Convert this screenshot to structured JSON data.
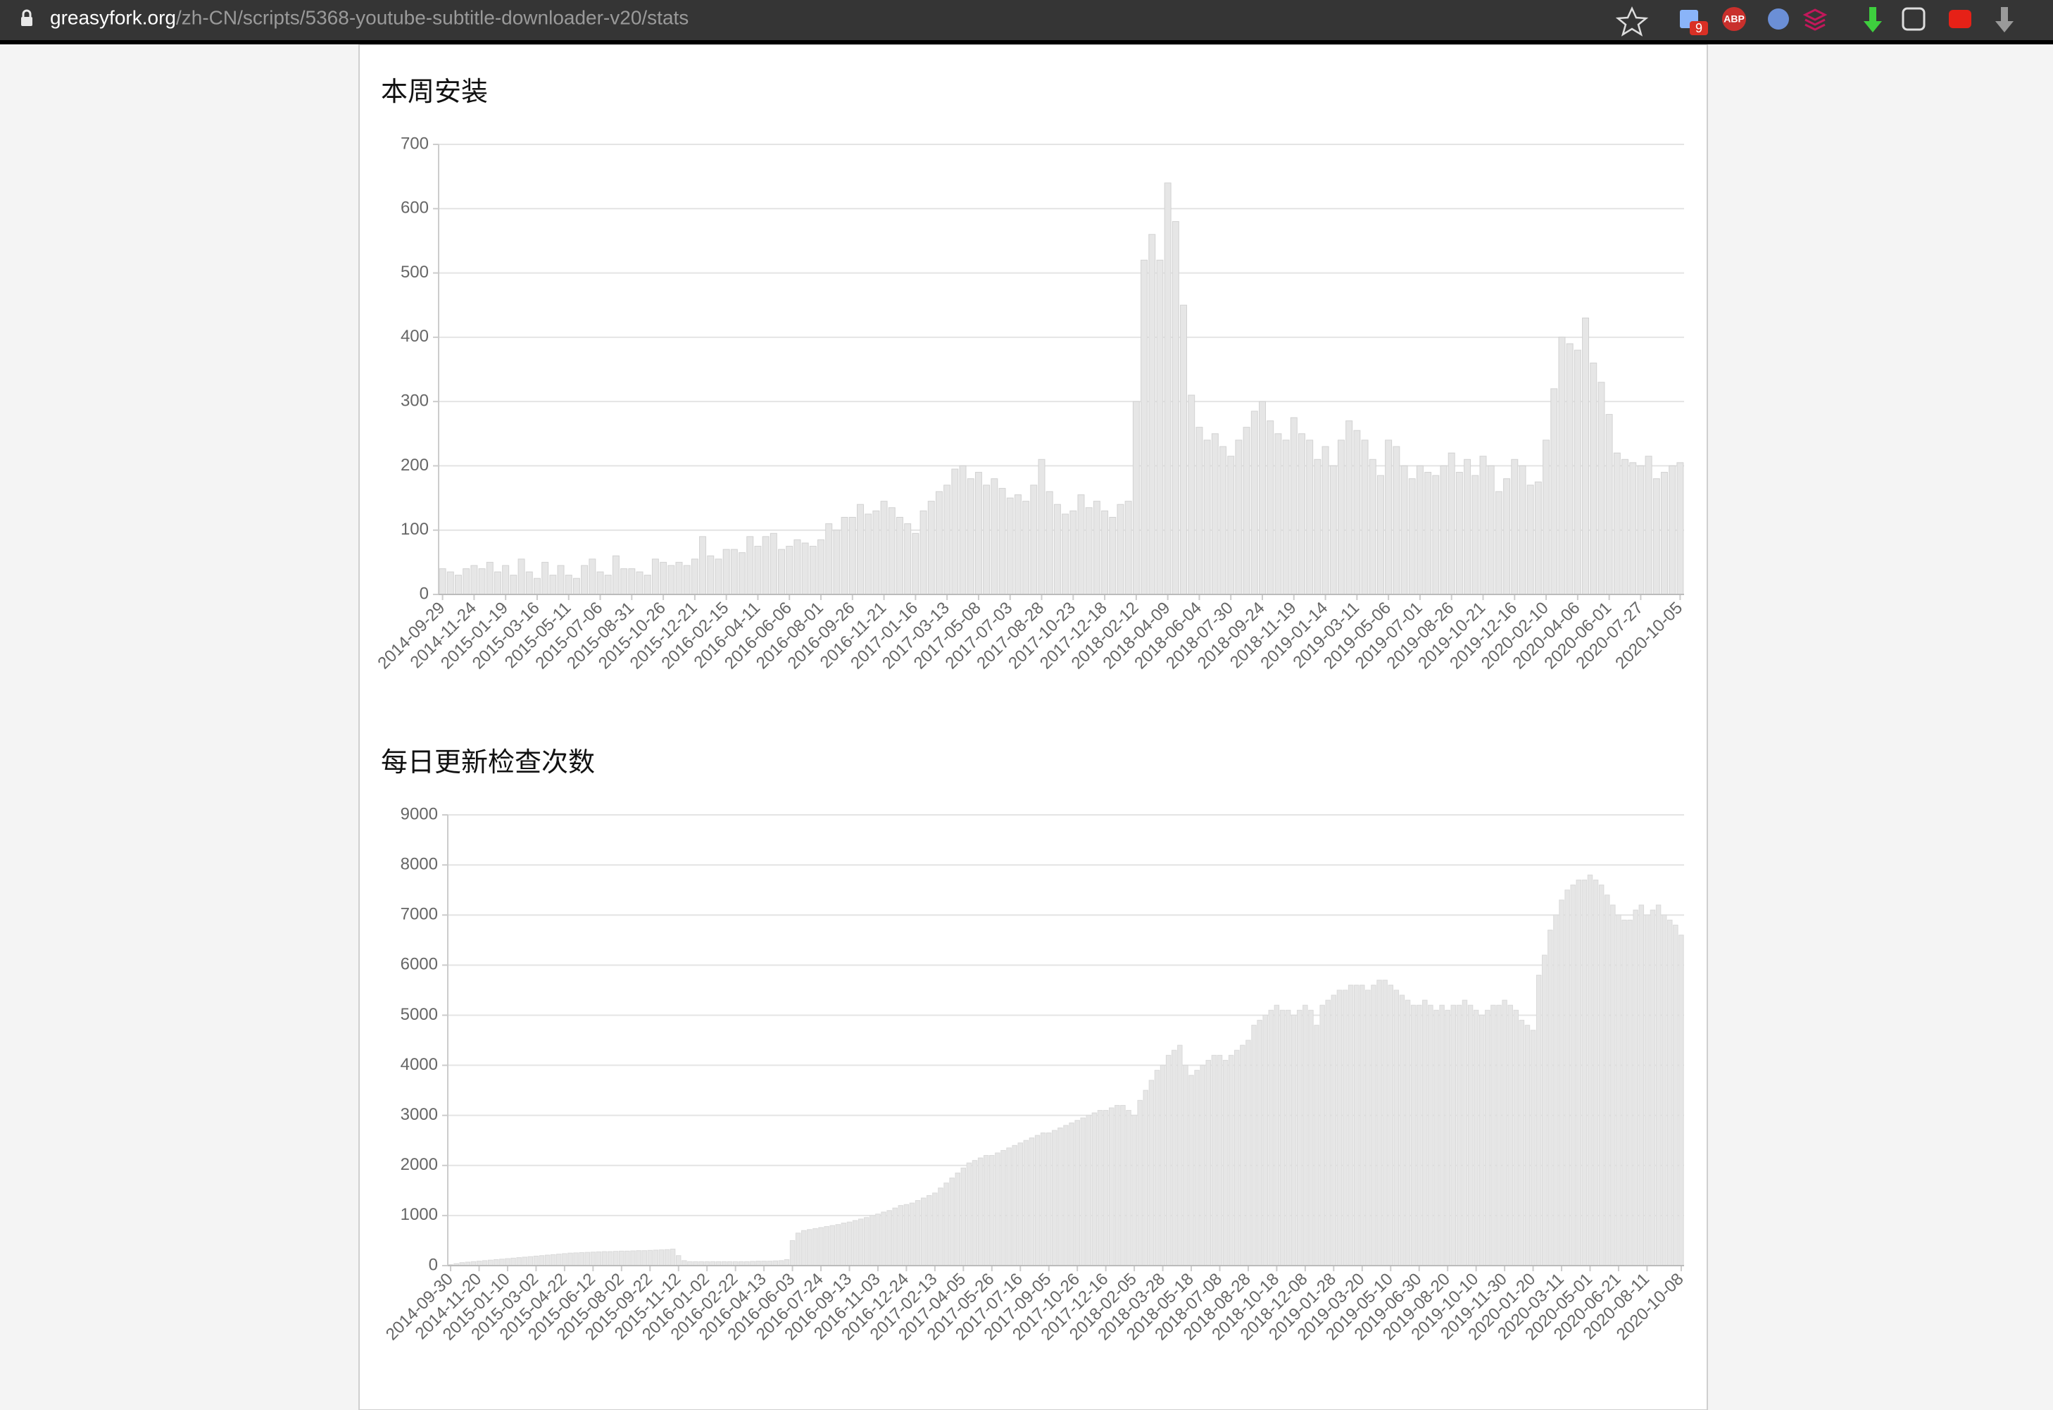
{
  "browser": {
    "url_host": "greasyfork.org",
    "url_path": "/zh-CN/scripts/5368-youtube-subtitle-downloader-v20/stats",
    "badge": "9",
    "abp": "ABP"
  },
  "chart_data": [
    {
      "type": "bar",
      "title": "本周安装",
      "color": "#e6e6e6",
      "border": "#d2d2d2",
      "grid": true,
      "ylim": [
        0,
        700
      ],
      "yticks": [
        0,
        100,
        200,
        300,
        400,
        500,
        600,
        700
      ],
      "categories": [
        "2014-09-29",
        null,
        null,
        null,
        "2014-11-24",
        null,
        null,
        null,
        "2015-01-19",
        null,
        null,
        null,
        "2015-03-16",
        null,
        null,
        null,
        "2015-05-11",
        null,
        null,
        null,
        "2015-07-06",
        null,
        null,
        null,
        "2015-08-31",
        null,
        null,
        null,
        "2015-10-26",
        null,
        null,
        null,
        "2015-12-21",
        null,
        null,
        null,
        "2016-02-15",
        null,
        null,
        null,
        "2016-04-11",
        null,
        null,
        null,
        "2016-06-06",
        null,
        null,
        null,
        "2016-08-01",
        null,
        null,
        null,
        "2016-09-26",
        null,
        null,
        null,
        "2016-11-21",
        null,
        null,
        null,
        "2017-01-16",
        null,
        null,
        null,
        "2017-03-13",
        null,
        null,
        null,
        "2017-05-08",
        null,
        null,
        null,
        "2017-07-03",
        null,
        null,
        null,
        "2017-08-28",
        null,
        null,
        null,
        "2017-10-23",
        null,
        null,
        null,
        "2017-12-18",
        null,
        null,
        null,
        "2018-02-12",
        null,
        null,
        null,
        "2018-04-09",
        null,
        null,
        null,
        "2018-06-04",
        null,
        null,
        null,
        "2018-07-30",
        null,
        null,
        null,
        "2018-09-24",
        null,
        null,
        null,
        "2018-11-19",
        null,
        null,
        null,
        "2019-01-14",
        null,
        null,
        null,
        "2019-03-11",
        null,
        null,
        null,
        "2019-05-06",
        null,
        null,
        null,
        "2019-07-01",
        null,
        null,
        null,
        "2019-08-26",
        null,
        null,
        null,
        "2019-10-21",
        null,
        null,
        null,
        "2019-12-16",
        null,
        null,
        null,
        "2020-02-10",
        null,
        null,
        null,
        "2020-04-06",
        null,
        null,
        null,
        "2020-06-01",
        null,
        null,
        null,
        "2020-07-27",
        null,
        null,
        null,
        null,
        "2020-10-05"
      ],
      "values": [
        40,
        35,
        30,
        40,
        45,
        40,
        50,
        35,
        45,
        30,
        55,
        35,
        25,
        50,
        30,
        45,
        30,
        25,
        45,
        55,
        35,
        30,
        60,
        40,
        40,
        35,
        30,
        55,
        50,
        45,
        50,
        45,
        55,
        90,
        60,
        55,
        70,
        70,
        65,
        90,
        75,
        90,
        95,
        70,
        75,
        85,
        80,
        75,
        85,
        110,
        100,
        120,
        120,
        140,
        125,
        130,
        145,
        135,
        120,
        110,
        95,
        130,
        145,
        160,
        170,
        195,
        200,
        180,
        190,
        170,
        180,
        165,
        150,
        155,
        145,
        170,
        210,
        160,
        140,
        125,
        130,
        155,
        135,
        145,
        130,
        120,
        140,
        145,
        300,
        520,
        560,
        520,
        640,
        580,
        450,
        310,
        260,
        240,
        250,
        230,
        215,
        240,
        260,
        285,
        300,
        270,
        250,
        240,
        275,
        250,
        240,
        210,
        230,
        200,
        240,
        270,
        255,
        240,
        210,
        185,
        240,
        230,
        200,
        180,
        200,
        190,
        185,
        200,
        220,
        190,
        210,
        185,
        215,
        200,
        160,
        180,
        210,
        200,
        170,
        175,
        240,
        320,
        400,
        390,
        380,
        430,
        360,
        330,
        280,
        220,
        210,
        205,
        200,
        215,
        180,
        190,
        200,
        205
      ]
    },
    {
      "type": "bar",
      "title": "每日更新检查次数",
      "color": "#e6e6e6",
      "border": "#dadada",
      "grid": true,
      "ylim": [
        0,
        9000
      ],
      "yticks": [
        0,
        1000,
        2000,
        3000,
        4000,
        5000,
        6000,
        7000,
        8000,
        9000
      ],
      "categories": [
        "2014-09-30",
        null,
        null,
        null,
        null,
        "2014-11-20",
        null,
        null,
        null,
        null,
        "2015-01-10",
        null,
        null,
        null,
        null,
        "2015-03-02",
        null,
        null,
        null,
        null,
        "2015-04-22",
        null,
        null,
        null,
        null,
        "2015-06-12",
        null,
        null,
        null,
        null,
        "2015-08-02",
        null,
        null,
        null,
        null,
        "2015-09-22",
        null,
        null,
        null,
        null,
        "2015-11-12",
        null,
        null,
        null,
        null,
        "2016-01-02",
        null,
        null,
        null,
        null,
        "2016-02-22",
        null,
        null,
        null,
        null,
        "2016-04-13",
        null,
        null,
        null,
        null,
        "2016-06-03",
        null,
        null,
        null,
        null,
        "2016-07-24",
        null,
        null,
        null,
        null,
        "2016-09-13",
        null,
        null,
        null,
        null,
        "2016-11-03",
        null,
        null,
        null,
        null,
        "2016-12-24",
        null,
        null,
        null,
        null,
        "2017-02-13",
        null,
        null,
        null,
        null,
        "2017-04-05",
        null,
        null,
        null,
        null,
        "2017-05-26",
        null,
        null,
        null,
        null,
        "2017-07-16",
        null,
        null,
        null,
        null,
        "2017-09-05",
        null,
        null,
        null,
        null,
        "2017-10-26",
        null,
        null,
        null,
        null,
        "2017-12-16",
        null,
        null,
        null,
        null,
        "2018-02-05",
        null,
        null,
        null,
        null,
        "2018-03-28",
        null,
        null,
        null,
        null,
        "2018-05-18",
        null,
        null,
        null,
        null,
        "2018-07-08",
        null,
        null,
        null,
        null,
        "2018-08-28",
        null,
        null,
        null,
        null,
        "2018-10-18",
        null,
        null,
        null,
        null,
        "2018-12-08",
        null,
        null,
        null,
        null,
        "2019-01-28",
        null,
        null,
        null,
        null,
        "2019-03-20",
        null,
        null,
        null,
        null,
        "2019-05-10",
        null,
        null,
        null,
        null,
        "2019-06-30",
        null,
        null,
        null,
        null,
        "2019-08-20",
        null,
        null,
        null,
        null,
        "2019-10-10",
        null,
        null,
        null,
        null,
        "2019-11-30",
        null,
        null,
        null,
        null,
        "2020-01-20",
        null,
        null,
        null,
        null,
        "2020-03-11",
        null,
        null,
        null,
        null,
        "2020-05-01",
        null,
        null,
        null,
        null,
        "2020-06-21",
        null,
        null,
        null,
        null,
        "2020-08-11",
        null,
        null,
        null,
        null,
        null,
        "2020-10-08"
      ],
      "values": [
        20,
        40,
        60,
        70,
        80,
        90,
        100,
        110,
        120,
        130,
        140,
        150,
        160,
        170,
        180,
        190,
        200,
        210,
        220,
        230,
        240,
        250,
        255,
        260,
        265,
        270,
        275,
        280,
        280,
        285,
        290,
        290,
        295,
        300,
        300,
        305,
        310,
        315,
        320,
        330,
        200,
        100,
        80,
        80,
        80,
        80,
        80,
        80,
        80,
        80,
        80,
        80,
        80,
        85,
        90,
        90,
        90,
        95,
        100,
        120,
        500,
        650,
        700,
        720,
        740,
        760,
        780,
        800,
        820,
        850,
        870,
        900,
        930,
        960,
        1000,
        1030,
        1070,
        1100,
        1150,
        1200,
        1220,
        1250,
        1300,
        1350,
        1400,
        1450,
        1550,
        1650,
        1750,
        1850,
        1950,
        2050,
        2100,
        2150,
        2200,
        2200,
        2250,
        2300,
        2350,
        2400,
        2450,
        2500,
        2550,
        2600,
        2650,
        2650,
        2700,
        2750,
        2800,
        2850,
        2900,
        2950,
        3000,
        3050,
        3100,
        3100,
        3150,
        3200,
        3200,
        3100,
        3000,
        3300,
        3500,
        3700,
        3900,
        4000,
        4200,
        4300,
        4400,
        4000,
        3800,
        3900,
        4000,
        4100,
        4200,
        4200,
        4100,
        4200,
        4300,
        4400,
        4500,
        4800,
        4900,
        5000,
        5100,
        5200,
        5100,
        5100,
        5000,
        5100,
        5200,
        5100,
        4800,
        5200,
        5300,
        5400,
        5500,
        5500,
        5600,
        5600,
        5600,
        5500,
        5600,
        5700,
        5700,
        5600,
        5500,
        5400,
        5300,
        5200,
        5200,
        5300,
        5200,
        5100,
        5200,
        5100,
        5200,
        5200,
        5300,
        5200,
        5100,
        5000,
        5100,
        5200,
        5200,
        5300,
        5200,
        5100,
        4900,
        4800,
        4700,
        5800,
        6200,
        6700,
        7000,
        7300,
        7500,
        7600,
        7700,
        7700,
        7800,
        7700,
        7600,
        7400,
        7200,
        7000,
        6900,
        6900,
        7100,
        7200,
        7000,
        7100,
        7200,
        7000,
        6900,
        6800,
        6600
      ]
    }
  ]
}
